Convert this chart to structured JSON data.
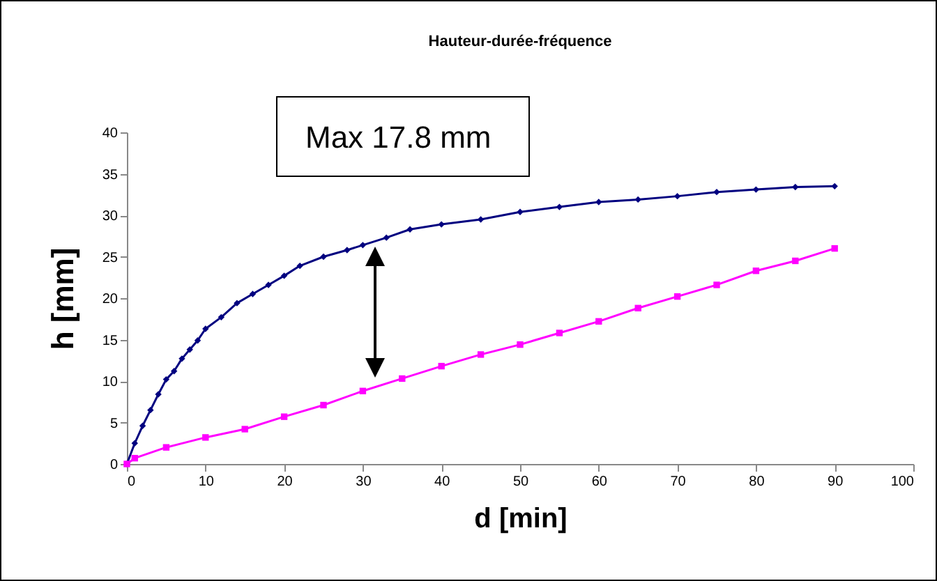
{
  "chart_data": {
    "type": "line",
    "title": "Hauteur-durée-fréquence",
    "xlabel": "d [min]",
    "ylabel": "h [mm]",
    "annotations": [
      "Max 17.8 mm"
    ],
    "xlim": [
      0,
      100
    ],
    "xticks": [
      0,
      10,
      20,
      30,
      40,
      50,
      60,
      70,
      80,
      90,
      100
    ],
    "ylim": [
      0,
      40
    ],
    "yticks": [
      0,
      5,
      10,
      15,
      20,
      25,
      30,
      35,
      40
    ],
    "grid": false,
    "line_style": "solid",
    "series": [
      {
        "color": "#000080",
        "marker": "diamond",
        "x": [
          0,
          1,
          2,
          3,
          4,
          5,
          6,
          7,
          8,
          9,
          10,
          12,
          14,
          16,
          18,
          20,
          22,
          25,
          28,
          30,
          33,
          36,
          40,
          45,
          50,
          55,
          60,
          65,
          70,
          75,
          80,
          85,
          90
        ],
        "values": [
          0,
          2.5,
          4.6,
          6.5,
          8.4,
          10.2,
          11.2,
          12.7,
          13.8,
          14.9,
          16.3,
          17.7,
          19.4,
          20.5,
          21.6,
          22.7,
          23.9,
          25.0,
          25.8,
          26.4,
          27.3,
          28.3,
          28.9,
          29.5,
          30.4,
          31.0,
          31.6,
          31.9,
          32.3,
          32.8,
          33.1,
          33.4,
          33.5
        ]
      },
      {
        "color": "#ff00ff",
        "marker": "square",
        "x": [
          0,
          1,
          5,
          10,
          15,
          20,
          25,
          30,
          35,
          40,
          45,
          50,
          55,
          60,
          65,
          70,
          75,
          80,
          85,
          90
        ],
        "values": [
          0,
          0.7,
          2.0,
          3.2,
          4.2,
          5.7,
          7.1,
          8.8,
          10.3,
          11.8,
          13.2,
          14.4,
          15.8,
          17.2,
          18.8,
          20.2,
          21.6,
          23.3,
          24.5,
          26.0
        ]
      }
    ]
  }
}
